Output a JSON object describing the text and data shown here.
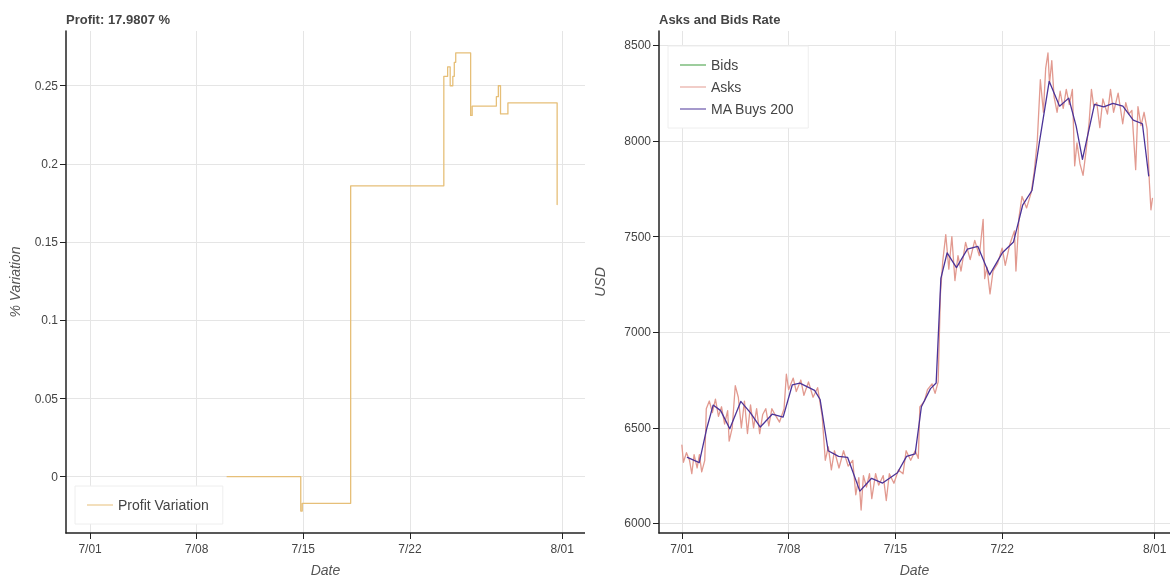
{
  "chart_data": [
    {
      "type": "step",
      "title": "Profit: 17.9807 %",
      "xlabel": "Date",
      "ylabel": "% Variation",
      "xlim": [
        "--06-29T10:00",
        "--08-02T12:00"
      ],
      "xticks": [
        {
          "value": "--07-01",
          "label": "7/01"
        },
        {
          "value": "--07-08",
          "label": "7/08"
        },
        {
          "value": "--07-15",
          "label": "7/15"
        },
        {
          "value": "--07-22",
          "label": "7/22"
        },
        {
          "value": "--08-01",
          "label": "8/01"
        }
      ],
      "ylim": [
        -0.036,
        0.285
      ],
      "yticks": [
        0,
        0.05,
        0.1,
        0.15,
        0.2,
        0.25
      ],
      "grid": true,
      "legend": "bottom left",
      "series": [
        {
          "name": "Profit Variation",
          "color": "#e6bf78",
          "x": [
            "--07-10T00:00",
            "--07-14T20:00",
            "--07-14T22:20",
            "--07-18T02:40",
            "--07-24T05:30",
            "--07-24T11:30",
            "--07-24T15:30",
            "--07-24T19:40",
            "--07-24T22:00",
            "--07-25T00:15",
            "--07-25T23:45",
            "--07-26T02:10",
            "--07-27T16:20",
            "--07-27T19:25",
            "--07-27T22:50",
            "--07-28T10:30",
            "--07-31T16:05",
            "--07-31T16:10"
          ],
          "values": [
            0,
            -0.022,
            -0.017,
            0.186,
            0.256,
            0.262,
            0.25,
            0.256,
            0.265,
            0.271,
            0.231,
            0.237,
            0.243,
            0.25,
            0.232,
            0.239,
            0.174,
            0.174
          ]
        }
      ]
    },
    {
      "type": "line",
      "title": "Asks and Bids Rate",
      "xlabel": "Date",
      "ylabel": "USD",
      "xlim": [
        "--06-29T12:00",
        "--08-02T00:00"
      ],
      "xticks": [
        {
          "value": "--07-01",
          "label": "7/01"
        },
        {
          "value": "--07-08",
          "label": "7/08"
        },
        {
          "value": "--07-15",
          "label": "7/15"
        },
        {
          "value": "--07-22",
          "label": "7/22"
        },
        {
          "value": "--08-01",
          "label": "8/01"
        }
      ],
      "ylim": [
        5950,
        8575
      ],
      "yticks": [
        6000,
        6500,
        7000,
        7500,
        8000,
        8500
      ],
      "grid": true,
      "legend": "top left",
      "series": [
        {
          "name": "Bids",
          "color": "#3a9a3a"
        },
        {
          "name": "Asks",
          "color": "#e29a90",
          "x": [
            "--07-01T00:00",
            "--07-01T02:24",
            "--07-01T07:12",
            "--07-01T12:00",
            "--07-01T15:36",
            "--07-01T19:12",
            "--07-02T00:00",
            "--07-02T03:36",
            "--07-02T07:12",
            "--07-02T12:00",
            "--07-02T14:24",
            "--07-02T19:12",
            "--07-03T00:00",
            "--07-03T04:48",
            "--07-03T09:36",
            "--07-03T14:24",
            "--07-03T19:12",
            "--07-04T00:00",
            "--07-04T02:24",
            "--07-04T07:12",
            "--07-04T12:00",
            "--07-04T16:48",
            "--07-04T21:36",
            "--07-05T02:24",
            "--07-05T07:12",
            "--07-05T12:00",
            "--07-05T16:48",
            "--07-05T21:36",
            "--07-06T02:24",
            "--07-06T07:12",
            "--07-06T12:00",
            "--07-06T16:48",
            "--07-06T21:36",
            "--07-07T02:24",
            "--07-07T09:36",
            "--07-07T16:48",
            "--07-07T20:24",
            "--07-08T00:00",
            "--07-08T07:12",
            "--07-08T12:00",
            "--07-08T19:12",
            "--07-09T00:00",
            "--07-09T07:12",
            "--07-09T14:24",
            "--07-09T21:36",
            "--07-10T04:48",
            "--07-10T09:36",
            "--07-10T14:24",
            "--07-10T19:12",
            "--07-11T00:00",
            "--07-11T07:12",
            "--07-11T14:24",
            "--07-11T21:36",
            "--07-12T04:48",
            "--07-12T09:36",
            "--07-12T14:24",
            "--07-12T18:00",
            "--07-12T21:36",
            "--07-13T02:24",
            "--07-13T07:12",
            "--07-13T10:48",
            "--07-13T16:48",
            "--07-13T21:36",
            "--07-14T04:48",
            "--07-14T09:36",
            "--07-14T14:24",
            "--07-14T21:36",
            "--07-15T04:48",
            "--07-15T12:00",
            "--07-15T16:48",
            "--07-16T00:00",
            "--07-16T07:12",
            "--07-16T12:00",
            "--07-16T14:24",
            "--07-16T21:36",
            "--07-17T02:24",
            "--07-17T09:36",
            "--07-17T14:24",
            "--07-17T19:12",
            "--07-17T22:48",
            "--07-18T02:24",
            "--07-18T07:12",
            "--07-18T12:00",
            "--07-18T16:48",
            "--07-18T21:36",
            "--07-19T02:24",
            "--07-19T07:12",
            "--07-19T14:24",
            "--07-19T21:36",
            "--07-20T04:48",
            "--07-20T12:00",
            "--07-20T18:00",
            "--07-20T20:24",
            "--07-21T00:00",
            "--07-21T04:48",
            "--07-21T09:36",
            "--07-21T16:48",
            "--07-22T00:00",
            "--07-22T04:48",
            "--07-22T12:00",
            "--07-22T19:12",
            "--07-22T21:36",
            "--07-23T02:24",
            "--07-23T07:12",
            "--07-23T14:24",
            "--07-23T21:36",
            "--07-24T02:24",
            "--07-24T07:12",
            "--07-24T12:00",
            "--07-24T16:48",
            "--07-24T20:24",
            "--07-25T00:00",
            "--07-25T02:24",
            "--07-25T06:00",
            "--07-25T09:36",
            "--07-25T14:24",
            "--07-25T19:12",
            "--07-26T00:00",
            "--07-26T04:48",
            "--07-26T09:36",
            "--07-26T14:24",
            "--07-26T18:00",
            "--07-26T21:36",
            "--07-27T02:24",
            "--07-27T07:12",
            "--07-27T12:00",
            "--07-27T16:48",
            "--07-27T20:24",
            "--07-28T00:00",
            "--07-28T04:48",
            "--07-28T09:36",
            "--07-28T14:24",
            "--07-28T21:36",
            "--07-29T02:24",
            "--07-29T07:12",
            "--07-29T14:24",
            "--07-29T21:36",
            "--07-30T02:24",
            "--07-30T07:12",
            "--07-30T12:00",
            "--07-30T18:00",
            "--07-30T21:36",
            "--07-31T02:24",
            "--07-31T07:12",
            "--07-31T12:00",
            "--07-31T15:36",
            "--07-31T18:00",
            "--07-31T20:24"
          ],
          "values": [
            6410,
            6320,
            6370,
            6330,
            6260,
            6360,
            6290,
            6360,
            6270,
            6330,
            6600,
            6640,
            6580,
            6650,
            6560,
            6610,
            6520,
            6590,
            6430,
            6500,
            6720,
            6660,
            6500,
            6640,
            6470,
            6620,
            6500,
            6600,
            6470,
            6570,
            6600,
            6510,
            6600,
            6570,
            6530,
            6600,
            6780,
            6700,
            6760,
            6690,
            6750,
            6670,
            6740,
            6660,
            6710,
            6560,
            6330,
            6400,
            6280,
            6380,
            6290,
            6380,
            6300,
            6330,
            6150,
            6240,
            6070,
            6250,
            6190,
            6260,
            6130,
            6260,
            6200,
            6250,
            6120,
            6260,
            6210,
            6280,
            6260,
            6380,
            6330,
            6380,
            6340,
            6610,
            6640,
            6700,
            6730,
            6680,
            6740,
            7200,
            7370,
            7510,
            7330,
            7500,
            7270,
            7400,
            7320,
            7470,
            7380,
            7480,
            7400,
            7590,
            7280,
            7340,
            7200,
            7320,
            7360,
            7440,
            7350,
            7460,
            7530,
            7320,
            7600,
            7710,
            7650,
            7730,
            7840,
            8000,
            8320,
            8150,
            8380,
            8460,
            8300,
            8420,
            8230,
            8150,
            8260,
            8170,
            8270,
            8190,
            8270,
            7870,
            7990,
            7880,
            7820,
            7950,
            8100,
            8270,
            8180,
            8200,
            8070,
            8220,
            8140,
            8270,
            8150,
            8250,
            8090,
            8200,
            8140,
            8160,
            7850,
            8180,
            8080,
            8150,
            8060,
            7780,
            7640,
            7700
          ]
        },
        {
          "name": "MA Buys 200",
          "color": "#4b3398",
          "x": [
            "--07-01T08:40",
            "--07-02T03:20",
            "--07-02T15:00",
            "--07-03T01:10",
            "--07-03T13:00",
            "--07-04T03:20",
            "--07-04T20:40",
            "--07-05T11:20",
            "--07-06T03:20",
            "--07-06T22:00",
            "--07-07T15:20",
            "--07-08T05:45",
            "--07-08T17:30",
            "--07-09T16:50",
            "--07-10T01:30",
            "--07-10T14:10",
            "--07-11T06:30",
            "--07-11T20:50",
            "--07-12T16:00",
            "--07-13T10:30",
            "--07-14T03:50",
            "--07-15T03:10",
            "--07-15T17:30",
            "--07-16T07:00",
            "--07-16T16:50",
            "--07-17T07:10",
            "--07-17T16:05",
            "--07-17T23:30",
            "--07-18T09:20",
            "--07-19T00:00",
            "--07-19T17:15",
            "--07-20T09:35",
            "--07-21T04:05",
            "--07-22T00:15",
            "--07-22T17:45",
            "--07-23T08:10",
            "--07-23T22:50",
            "--07-24T10:20",
            "--07-25T01:55",
            "--07-25T18:15",
            "--07-26T08:40",
            "--07-26T20:25",
            "--07-27T06:15",
            "--07-28T01:10",
            "--07-28T15:50",
            "--07-29T06:15",
            "--07-29T21:50",
            "--07-30T14:10",
            "--07-31T04:35",
            "--07-31T14:25"
          ],
          "values": [
            6345,
            6318,
            6495,
            6619,
            6590,
            6495,
            6638,
            6581,
            6504,
            6571,
            6556,
            6725,
            6734,
            6696,
            6648,
            6380,
            6351,
            6345,
            6169,
            6236,
            6211,
            6265,
            6351,
            6364,
            6610,
            6705,
            6734,
            7281,
            7415,
            7338,
            7434,
            7449,
            7300,
            7415,
            7472,
            7664,
            7741,
            7990,
            8312,
            8182,
            8224,
            8076,
            7904,
            8191,
            8178,
            8197,
            8182,
            8109,
            8090,
            7818
          ]
        }
      ]
    }
  ]
}
